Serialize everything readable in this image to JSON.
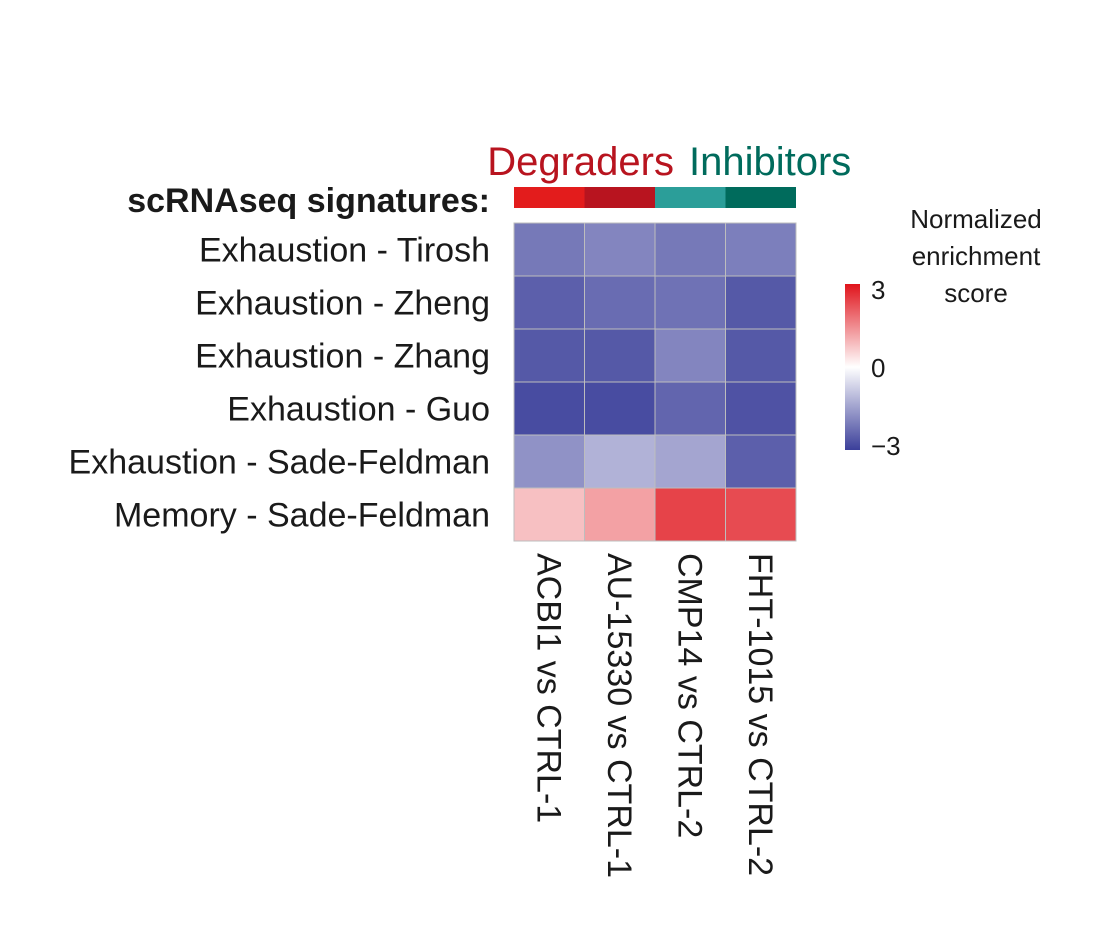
{
  "chart_data": {
    "type": "heatmap",
    "title": "",
    "group_labels": [
      {
        "label": "Degraders",
        "color": "#b8141f"
      },
      {
        "label": "Inhibitors",
        "color": "#006b5c"
      }
    ],
    "row_header": "scRNAseq signatures:",
    "rows": [
      "Exhaustion - Tirosh",
      "Exhaustion - Zheng",
      "Exhaustion - Zhang",
      "Exhaustion - Guo",
      "Exhaustion - Sade-Feldman",
      "Memory - Sade-Feldman"
    ],
    "columns": [
      "ACBI1 vs CTRL-1",
      "AU-15330 vs CTRL-1",
      "CMP14 vs CTRL-2",
      "FHT-1015 vs CTRL-2"
    ],
    "column_annotation_colors": [
      "#e31c1c",
      "#b8141f",
      "#2b9e99",
      "#006b5c"
    ],
    "values": [
      [
        -2.1,
        -1.9,
        -2.1,
        -2.0
      ],
      [
        -2.5,
        -2.3,
        -2.2,
        -2.6
      ],
      [
        -2.6,
        -2.6,
        -1.9,
        -2.6
      ],
      [
        -2.8,
        -2.8,
        -2.4,
        -2.7
      ],
      [
        -1.7,
        -1.2,
        -1.4,
        -2.5
      ],
      [
        0.8,
        1.2,
        2.4,
        2.3
      ]
    ],
    "colorbar": {
      "title": [
        "Normalized",
        "enrichment",
        "score"
      ],
      "min": -3,
      "max": 3,
      "ticks": [
        "3",
        "0",
        "−3"
      ],
      "low_color": "#3b3f9a",
      "mid_color": "#ffffff",
      "high_color": "#e0141c"
    }
  }
}
